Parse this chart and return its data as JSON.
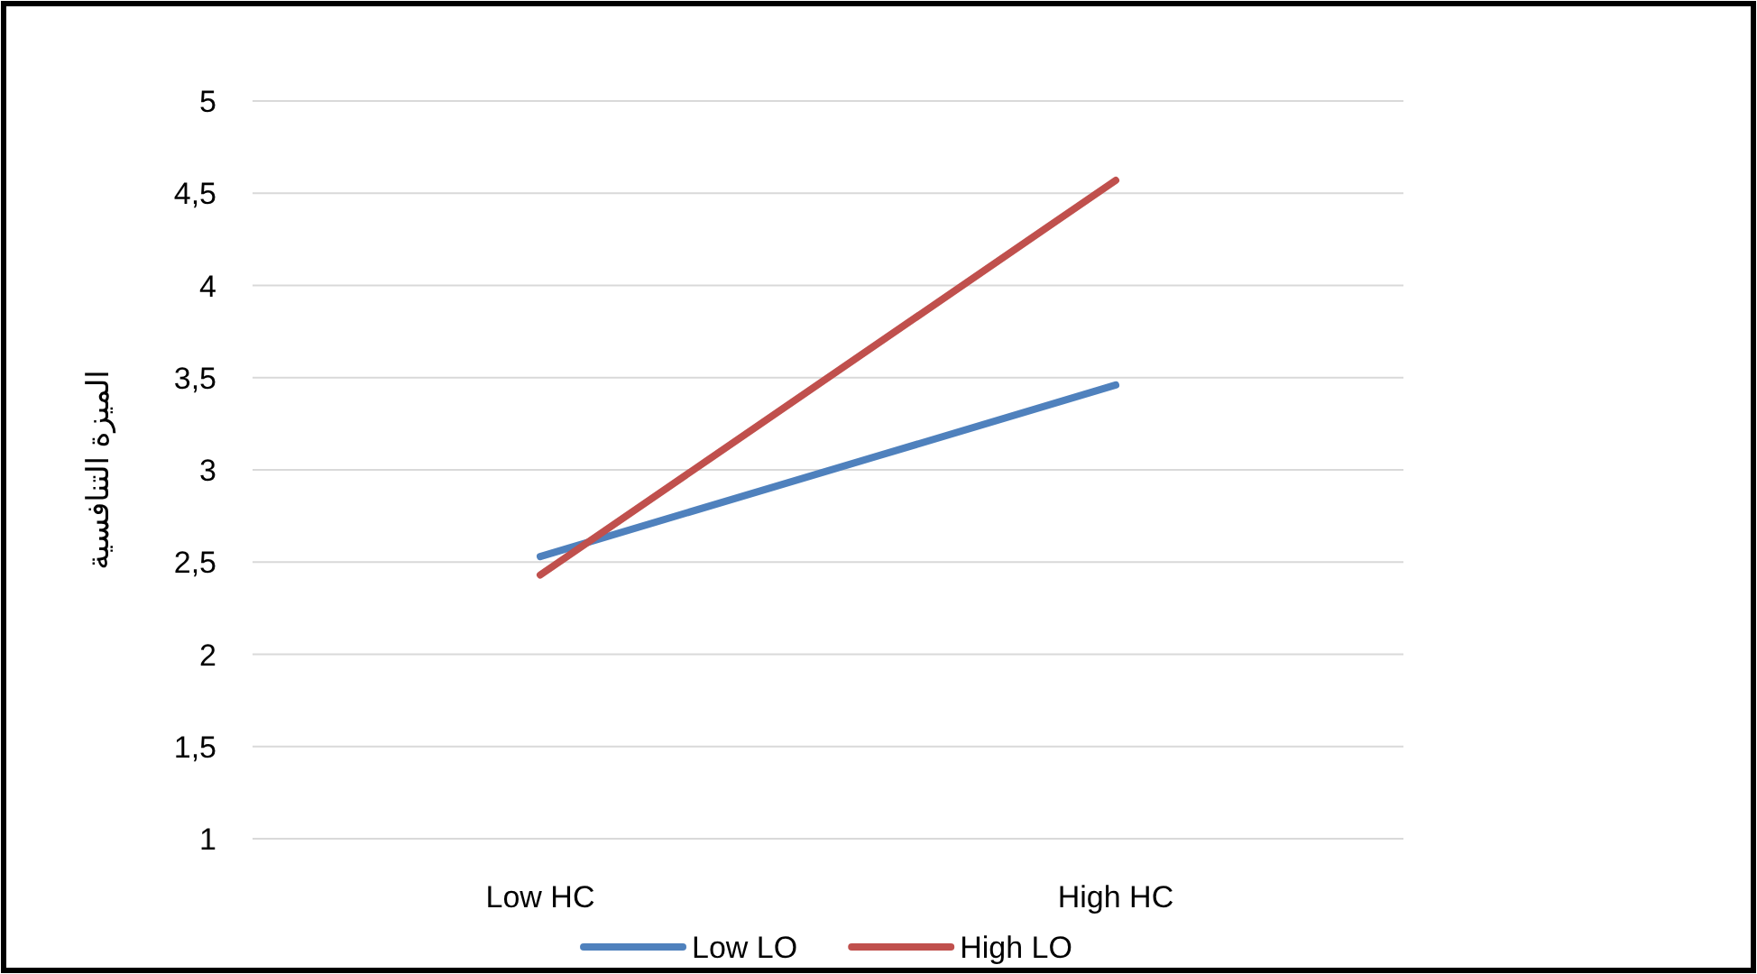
{
  "chart_data": {
    "type": "line",
    "ylabel": "الميزة التنافسية",
    "categories": [
      "Low HC",
      "High HC"
    ],
    "series": [
      {
        "name": "Low LO",
        "color": "#4f81bd",
        "values": [
          2.53,
          3.46
        ]
      },
      {
        "name": "High LO",
        "color": "#c0504d",
        "values": [
          2.43,
          4.57
        ]
      }
    ],
    "ylim": [
      1,
      5
    ],
    "yticks": [
      1,
      {
        "value": 1.5,
        "label": "1,5"
      },
      2,
      {
        "value": 2.5,
        "label": "2,5"
      },
      3,
      {
        "value": 3.5,
        "label": "3,5"
      },
      4,
      {
        "value": 4.5,
        "label": "4,5"
      },
      5
    ],
    "grid": "y",
    "legend": "bottom",
    "marker": "none",
    "line_style": "solid"
  }
}
